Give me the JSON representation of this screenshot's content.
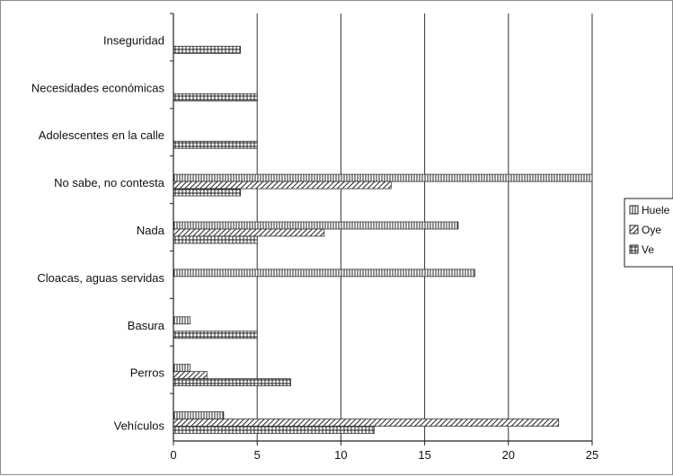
{
  "chart_data": {
    "type": "bar",
    "orientation": "horizontal",
    "title": "",
    "xlabel": "",
    "ylabel": "",
    "categories": [
      "Inseguridad",
      "Necesidades económicas",
      "Adolescentes en la calle",
      "No sabe, no contesta",
      "Nada",
      "Cloacas, aguas servidas",
      "Basura",
      "Perros",
      "Vehículos"
    ],
    "series": [
      {
        "name": "Huele",
        "values": [
          0,
          0,
          0,
          25,
          17,
          18,
          1,
          1,
          3
        ]
      },
      {
        "name": "Oye",
        "values": [
          0,
          0,
          0,
          13,
          9,
          0,
          0,
          2,
          23
        ]
      },
      {
        "name": "Ve",
        "values": [
          4,
          5,
          5,
          4,
          5,
          0,
          5,
          7,
          12
        ]
      }
    ],
    "xlim": [
      0,
      25
    ],
    "xticks": [
      0,
      5,
      10,
      15,
      20,
      25
    ],
    "grid": "vertical",
    "legend": "right",
    "colors": {
      "frame": "#8c8c8c",
      "axis": "#222222",
      "bar_fill": "#ffffff",
      "bar_stroke": "#333333"
    }
  }
}
